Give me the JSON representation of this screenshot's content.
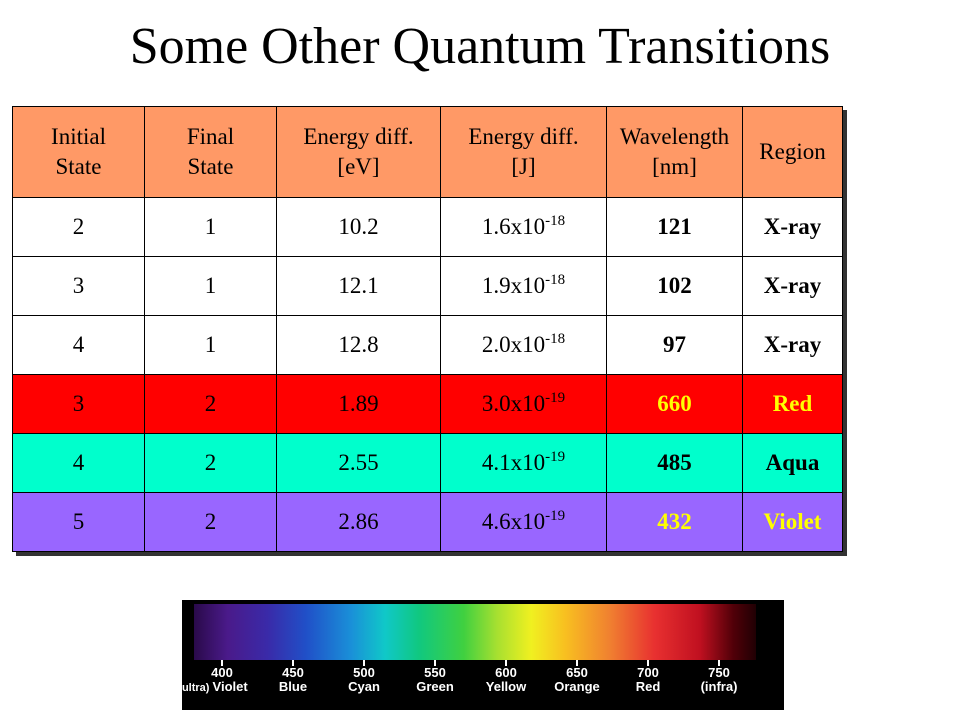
{
  "title": "Some Other Quantum Transitions",
  "table": {
    "headers": [
      "Initial\nState",
      "Final\nState",
      "Energy diff.\n[eV]",
      "Energy diff.\n[J]",
      "Wavelength\n[nm]",
      "Region"
    ],
    "rows": [
      {
        "initial": "2",
        "final": "1",
        "ev": "10.2",
        "j_mant": "1.6x10",
        "j_exp": "-18",
        "wavelength": "121",
        "region": "X-ray"
      },
      {
        "initial": "3",
        "final": "1",
        "ev": "12.1",
        "j_mant": "1.9x10",
        "j_exp": "-18",
        "wavelength": "102",
        "region": "X-ray"
      },
      {
        "initial": "4",
        "final": "1",
        "ev": "12.8",
        "j_mant": "2.0x10",
        "j_exp": "-18",
        "wavelength": "97",
        "region": "X-ray"
      },
      {
        "initial": "3",
        "final": "2",
        "ev": "1.89",
        "j_mant": "3.0x10",
        "j_exp": "-19",
        "wavelength": "660",
        "region": "Red"
      },
      {
        "initial": "4",
        "final": "2",
        "ev": "2.55",
        "j_mant": "4.1x10",
        "j_exp": "-19",
        "wavelength": "485",
        "region": "Aqua"
      },
      {
        "initial": "5",
        "final": "2",
        "ev": "2.86",
        "j_mant": "4.6x10",
        "j_exp": "-19",
        "wavelength": "432",
        "region": "Violet"
      }
    ]
  },
  "colors": {
    "header_bg": "#ff9966",
    "red_row": "#ff0000",
    "aqua_row": "#00ffcc",
    "violet_row": "#9966ff",
    "highlight_text": "#ffff00"
  },
  "spectrum": {
    "labels": [
      {
        "nm": "400",
        "name": "Violet",
        "prefix": "(ultra)"
      },
      {
        "nm": "450",
        "name": "Blue"
      },
      {
        "nm": "500",
        "name": "Cyan"
      },
      {
        "nm": "550",
        "name": "Green"
      },
      {
        "nm": "600",
        "name": "Yellow"
      },
      {
        "nm": "650",
        "name": "Orange"
      },
      {
        "nm": "700",
        "name": "Red"
      },
      {
        "nm": "750",
        "name": "(infra)"
      }
    ]
  }
}
